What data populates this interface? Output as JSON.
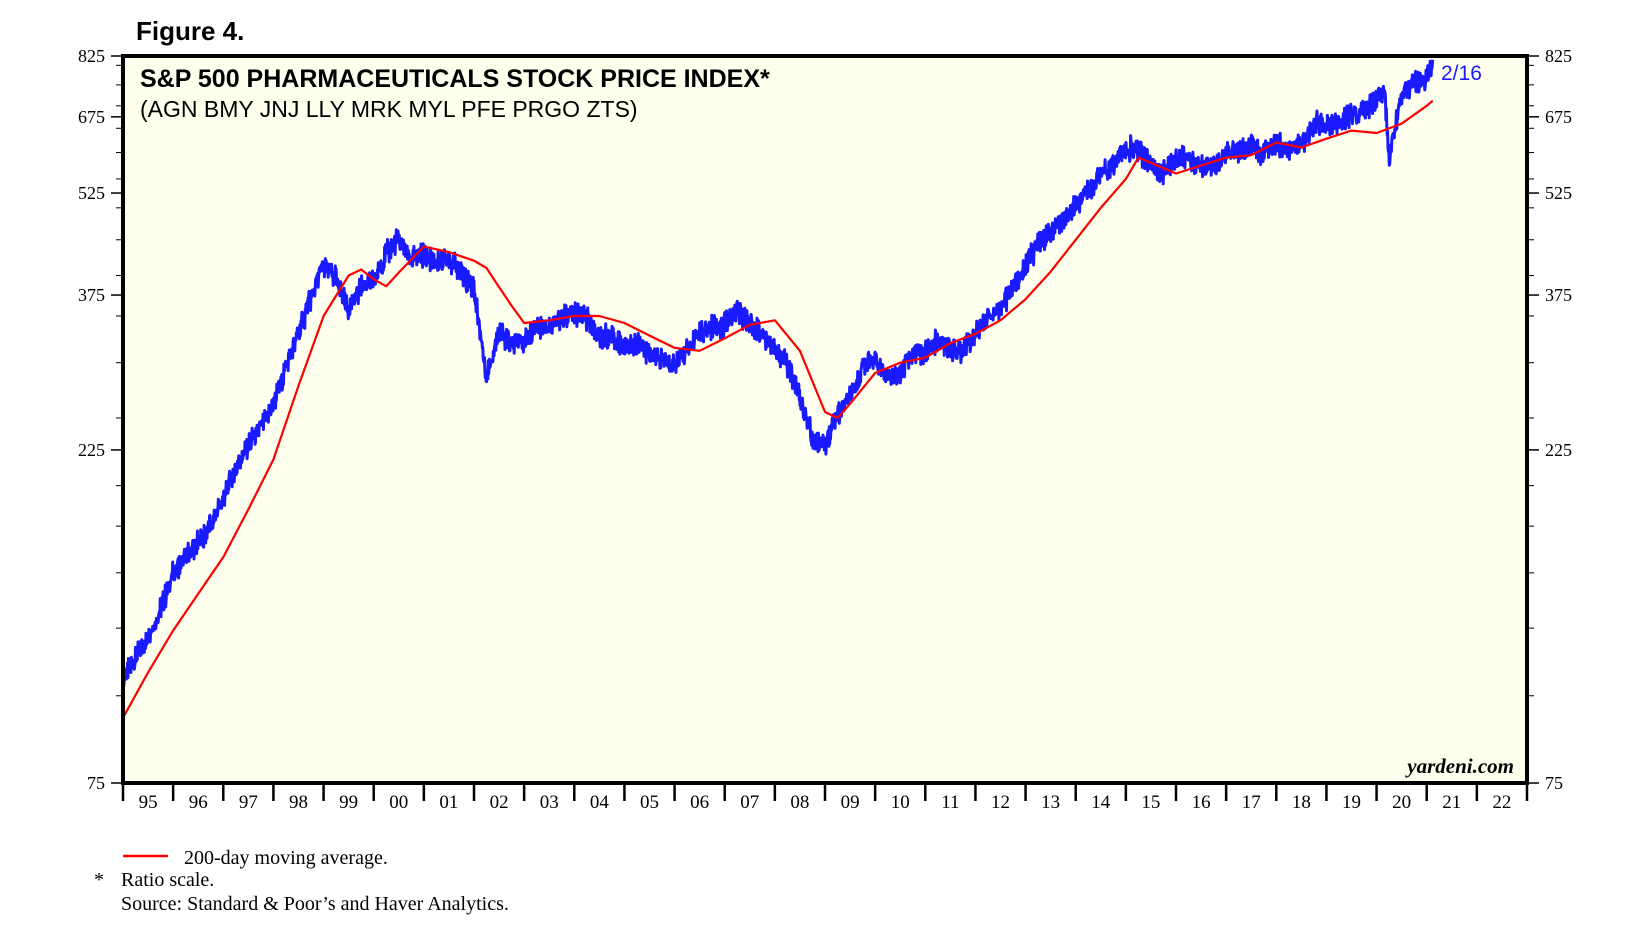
{
  "figure_label": "Figure 4.",
  "chart_data": {
    "type": "line",
    "title": "S&P 500 PHARMACEUTICALS STOCK PRICE INDEX*",
    "subtitle": "(AGN BMY JNJ LLY MRK MYL PFE PRGO ZTS)",
    "scale": "log",
    "ylim": [
      75,
      825
    ],
    "xlim": [
      1995.0,
      2023.0
    ],
    "y_ticks": [
      75,
      225,
      375,
      525,
      675,
      825
    ],
    "y_minor_ticks": [
      100,
      125,
      150,
      175,
      200,
      250,
      300,
      350,
      400,
      450,
      500,
      550,
      600,
      650,
      700,
      750,
      800
    ],
    "x_ticks": [
      {
        "year": 1995,
        "label": "95"
      },
      {
        "year": 1996,
        "label": "96"
      },
      {
        "year": 1997,
        "label": "97"
      },
      {
        "year": 1998,
        "label": "98"
      },
      {
        "year": 1999,
        "label": "99"
      },
      {
        "year": 2000,
        "label": "00"
      },
      {
        "year": 2001,
        "label": "01"
      },
      {
        "year": 2002,
        "label": "02"
      },
      {
        "year": 2003,
        "label": "03"
      },
      {
        "year": 2004,
        "label": "04"
      },
      {
        "year": 2005,
        "label": "05"
      },
      {
        "year": 2006,
        "label": "06"
      },
      {
        "year": 2007,
        "label": "07"
      },
      {
        "year": 2008,
        "label": "08"
      },
      {
        "year": 2009,
        "label": "09"
      },
      {
        "year": 2010,
        "label": "10"
      },
      {
        "year": 2011,
        "label": "11"
      },
      {
        "year": 2012,
        "label": "12"
      },
      {
        "year": 2013,
        "label": "13"
      },
      {
        "year": 2014,
        "label": "14"
      },
      {
        "year": 2015,
        "label": "15"
      },
      {
        "year": 2016,
        "label": "16"
      },
      {
        "year": 2017,
        "label": "17"
      },
      {
        "year": 2018,
        "label": "18"
      },
      {
        "year": 2019,
        "label": "19"
      },
      {
        "year": 2020,
        "label": "20"
      },
      {
        "year": 2021,
        "label": "21"
      },
      {
        "year": 2022,
        "label": "22"
      }
    ],
    "series": [
      {
        "name": "S&P 500 Pharmaceuticals Stock Price Index",
        "color": "#1a1aff",
        "x": [
          1995.0,
          1995.25,
          1995.5,
          1995.75,
          1996.0,
          1996.25,
          1996.5,
          1996.75,
          1997.0,
          1997.25,
          1997.5,
          1997.75,
          1998.0,
          1998.25,
          1998.5,
          1998.75,
          1999.0,
          1999.25,
          1999.5,
          1999.75,
          2000.0,
          2000.25,
          2000.5,
          2000.75,
          2001.0,
          2001.25,
          2001.5,
          2001.75,
          2002.0,
          2002.25,
          2002.5,
          2002.75,
          2003.0,
          2003.25,
          2003.5,
          2003.75,
          2004.0,
          2004.25,
          2004.5,
          2004.75,
          2005.0,
          2005.25,
          2005.5,
          2005.75,
          2006.0,
          2006.25,
          2006.5,
          2006.75,
          2007.0,
          2007.25,
          2007.5,
          2007.75,
          2008.0,
          2008.25,
          2008.5,
          2008.75,
          2009.0,
          2009.25,
          2009.5,
          2009.75,
          2010.0,
          2010.25,
          2010.5,
          2010.75,
          2011.0,
          2011.25,
          2011.5,
          2011.75,
          2012.0,
          2012.25,
          2012.5,
          2012.75,
          2013.0,
          2013.25,
          2013.5,
          2013.75,
          2014.0,
          2014.25,
          2014.5,
          2014.75,
          2015.0,
          2015.25,
          2015.5,
          2015.75,
          2016.0,
          2016.25,
          2016.5,
          2016.75,
          2017.0,
          2017.25,
          2017.5,
          2017.75,
          2018.0,
          2018.25,
          2018.5,
          2018.75,
          2019.0,
          2019.25,
          2019.5,
          2019.75,
          2020.0,
          2020.15,
          2020.25,
          2020.5,
          2020.75,
          2021.0,
          2021.12
        ],
        "values": [
          106,
          113,
          121,
          133,
          150,
          158,
          166,
          175,
          192,
          212,
          228,
          242,
          262,
          296,
          330,
          372,
          414,
          395,
          358,
          386,
          393,
          430,
          452,
          420,
          430,
          415,
          425,
          402,
          385,
          286,
          333,
          318,
          322,
          338,
          338,
          348,
          352,
          346,
          326,
          328,
          316,
          322,
          310,
          303,
          300,
          312,
          330,
          336,
          340,
          356,
          342,
          330,
          315,
          298,
          268,
          236,
          228,
          252,
          268,
          295,
          305,
          285,
          290,
          310,
          312,
          322,
          315,
          312,
          330,
          348,
          360,
          385,
          412,
          445,
          462,
          478,
          508,
          532,
          558,
          575,
          612,
          602,
          578,
          562,
          585,
          592,
          571,
          575,
          597,
          605,
          612,
          598,
          618,
          604,
          616,
          660,
          660,
          660,
          680,
          688,
          712,
          740,
          590,
          722,
          758,
          760,
          815
        ]
      },
      {
        "name": "200-day moving average.",
        "color": "#ff0000",
        "x": [
          1995.0,
          1995.5,
          1996.0,
          1996.5,
          1997.0,
          1997.5,
          1998.0,
          1998.5,
          1999.0,
          1999.5,
          1999.75,
          2000.0,
          2000.25,
          2000.5,
          2001.0,
          2001.5,
          2001.75,
          2002.0,
          2002.25,
          2002.5,
          2002.75,
          2003.0,
          2003.5,
          2004.0,
          2004.5,
          2005.0,
          2005.5,
          2006.0,
          2006.5,
          2007.0,
          2007.5,
          2008.0,
          2008.5,
          2009.0,
          2009.25,
          2009.5,
          2010.0,
          2010.5,
          2011.0,
          2011.5,
          2012.0,
          2012.5,
          2013.0,
          2013.5,
          2014.0,
          2014.5,
          2015.0,
          2015.25,
          2015.5,
          2016.0,
          2016.5,
          2017.0,
          2017.5,
          2018.0,
          2018.5,
          2019.0,
          2019.5,
          2020.0,
          2020.5,
          2021.0,
          2021.12
        ],
        "values": [
          93,
          108,
          124,
          140,
          158,
          185,
          218,
          278,
          350,
          400,
          408,
          395,
          386,
          404,
          440,
          432,
          426,
          420,
          410,
          385,
          362,
          342,
          345,
          350,
          350,
          342,
          328,
          315,
          312,
          325,
          340,
          345,
          312,
          255,
          250,
          262,
          290,
          300,
          305,
          320,
          330,
          345,
          370,
          405,
          450,
          500,
          550,
          590,
          580,
          560,
          575,
          590,
          595,
          620,
          610,
          628,
          645,
          640,
          660,
          700,
          712
        ]
      }
    ],
    "annotation_last": "2/16",
    "watermark": "yardeni.com"
  },
  "legend": {
    "moving_average": "200-day moving average."
  },
  "notes": {
    "ratio_marker": "*",
    "ratio": "Ratio scale.",
    "source": "Source: Standard & Poor’s and Haver Analytics."
  }
}
